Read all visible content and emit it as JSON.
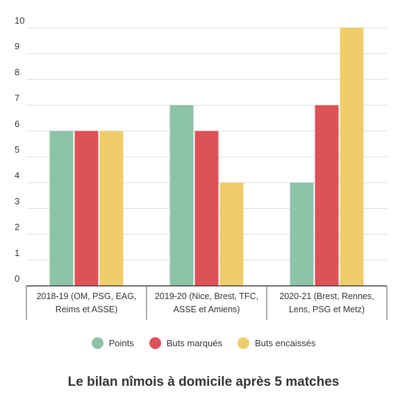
{
  "chart_data": {
    "type": "bar",
    "title": "Le bilan nîmois à domicile après 5 matches",
    "categories": [
      [
        "2018-19 (OM, PSG, EAG,",
        "Reims et ASSE)"
      ],
      [
        "2019-20 (Nice, Brest, TFC,",
        "ASSE et Amiens)"
      ],
      [
        "2020-21 (Brest, Rennes,",
        "Lens, PSG et Metz)"
      ]
    ],
    "series": [
      {
        "name": "Points",
        "color": "#8dc3a7",
        "values": [
          6,
          7,
          4
        ]
      },
      {
        "name": "Buts marqués",
        "color": "#dd5257",
        "values": [
          6,
          6,
          7
        ]
      },
      {
        "name": "Buts encaissés",
        "color": "#efcd6b",
        "values": [
          6,
          4,
          10
        ]
      }
    ],
    "ylim": [
      0,
      10
    ],
    "yticks": [
      "0",
      "1",
      "2",
      "3",
      "4",
      "5",
      "6",
      "7",
      "8",
      "9",
      "10"
    ],
    "grid": true,
    "legend_position": "bottom"
  }
}
